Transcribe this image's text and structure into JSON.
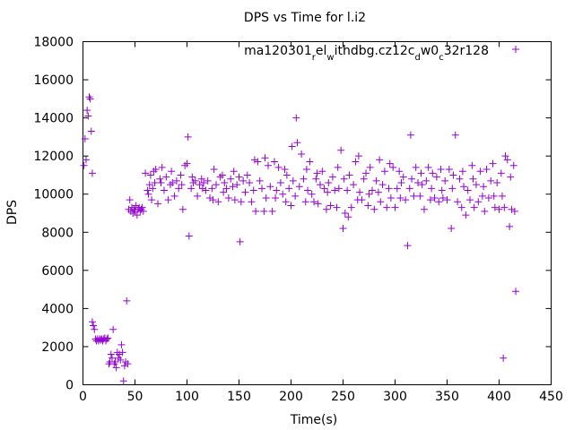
{
  "chart_data": {
    "type": "scatter",
    "title": "DPS vs Time for l.i2",
    "xlabel": "Time(s)",
    "ylabel": "DPS",
    "xlim": [
      0,
      450
    ],
    "ylim": [
      0,
      18000
    ],
    "xticks": [
      0,
      50,
      100,
      150,
      200,
      250,
      300,
      350,
      400,
      450
    ],
    "yticks": [
      0,
      2000,
      4000,
      6000,
      8000,
      10000,
      12000,
      14000,
      16000,
      18000
    ],
    "grid": false,
    "legend_position": "top-right",
    "marker": "+",
    "series": [
      {
        "name_parts": [
          {
            "t": "ma120301",
            "sub": false
          },
          {
            "t": "r",
            "sub": true
          },
          {
            "t": "el",
            "sub": false
          },
          {
            "t": "w",
            "sub": true
          },
          {
            "t": "ithdbg.cz12c",
            "sub": false
          },
          {
            "t": "d",
            "sub": true
          },
          {
            "t": "w0",
            "sub": false
          },
          {
            "t": "c",
            "sub": true
          },
          {
            "t": "32r128",
            "sub": false
          }
        ],
        "color": "#9400d3",
        "points": [
          [
            1,
            11500
          ],
          [
            2,
            12900
          ],
          [
            3,
            11800
          ],
          [
            4,
            14400
          ],
          [
            5,
            14100
          ],
          [
            6,
            15100
          ],
          [
            7,
            15000
          ],
          [
            8,
            13300
          ],
          [
            9,
            11100
          ],
          [
            9,
            3300
          ],
          [
            10,
            3100
          ],
          [
            11,
            2900
          ],
          [
            12,
            2400
          ],
          [
            13,
            2300
          ],
          [
            14,
            2400
          ],
          [
            15,
            2300
          ],
          [
            16,
            2400
          ],
          [
            17,
            2350
          ],
          [
            18,
            2400
          ],
          [
            19,
            2300
          ],
          [
            20,
            2400
          ],
          [
            21,
            2450
          ],
          [
            22,
            2300
          ],
          [
            23,
            2400
          ],
          [
            24,
            2450
          ],
          [
            25,
            1100
          ],
          [
            26,
            1200
          ],
          [
            27,
            1600
          ],
          [
            28,
            1400
          ],
          [
            29,
            2900
          ],
          [
            30,
            1100
          ],
          [
            31,
            1200
          ],
          [
            32,
            900
          ],
          [
            33,
            1700
          ],
          [
            34,
            1400
          ],
          [
            35,
            1600
          ],
          [
            36,
            1300
          ],
          [
            37,
            2100
          ],
          [
            38,
            1700
          ],
          [
            39,
            200
          ],
          [
            40,
            1000
          ],
          [
            41,
            1200
          ],
          [
            42,
            4400
          ],
          [
            43,
            1100
          ],
          [
            44,
            9200
          ],
          [
            45,
            9700
          ],
          [
            46,
            9100
          ],
          [
            47,
            9300
          ],
          [
            48,
            9000
          ],
          [
            49,
            9200
          ],
          [
            50,
            9100
          ],
          [
            51,
            9400
          ],
          [
            52,
            8900
          ],
          [
            53,
            9200
          ],
          [
            54,
            9300
          ],
          [
            55,
            9100
          ],
          [
            56,
            9200
          ],
          [
            57,
            9300
          ],
          [
            58,
            9100
          ],
          [
            60,
            11100
          ],
          [
            62,
            10200
          ],
          [
            63,
            10000
          ],
          [
            64,
            10500
          ],
          [
            65,
            11000
          ],
          [
            66,
            9700
          ],
          [
            67,
            10300
          ],
          [
            68,
            11200
          ],
          [
            69,
            10600
          ],
          [
            70,
            11300
          ],
          [
            72,
            9500
          ],
          [
            74,
            10800
          ],
          [
            75,
            10600
          ],
          [
            76,
            11400
          ],
          [
            78,
            10200
          ],
          [
            80,
            10900
          ],
          [
            82,
            9700
          ],
          [
            84,
            10500
          ],
          [
            85,
            11200
          ],
          [
            86,
            10600
          ],
          [
            88,
            9900
          ],
          [
            90,
            10700
          ],
          [
            92,
            10300
          ],
          [
            94,
            11000
          ],
          [
            95,
            10500
          ],
          [
            96,
            9200
          ],
          [
            98,
            11500
          ],
          [
            100,
            11600
          ],
          [
            101,
            13000
          ],
          [
            102,
            7800
          ],
          [
            104,
            10300
          ],
          [
            105,
            10900
          ],
          [
            106,
            10600
          ],
          [
            108,
            10700
          ],
          [
            110,
            9900
          ],
          [
            112,
            10500
          ],
          [
            114,
            10800
          ],
          [
            115,
            10300
          ],
          [
            116,
            10600
          ],
          [
            118,
            10200
          ],
          [
            120,
            10700
          ],
          [
            122,
            9800
          ],
          [
            124,
            10300
          ],
          [
            125,
            9700
          ],
          [
            126,
            11300
          ],
          [
            128,
            10500
          ],
          [
            130,
            9600
          ],
          [
            132,
            10900
          ],
          [
            134,
            11000
          ],
          [
            135,
            10100
          ],
          [
            136,
            10600
          ],
          [
            138,
            10300
          ],
          [
            140,
            9800
          ],
          [
            142,
            10800
          ],
          [
            144,
            10400
          ],
          [
            145,
            11200
          ],
          [
            146,
            9700
          ],
          [
            148,
            10500
          ],
          [
            150,
            10900
          ],
          [
            151,
            7500
          ],
          [
            152,
            9600
          ],
          [
            154,
            10700
          ],
          [
            156,
            10100
          ],
          [
            158,
            11000
          ],
          [
            160,
            10600
          ],
          [
            162,
            9600
          ],
          [
            164,
            10200
          ],
          [
            165,
            11800
          ],
          [
            166,
            9100
          ],
          [
            168,
            11700
          ],
          [
            170,
            10700
          ],
          [
            172,
            10300
          ],
          [
            174,
            9100
          ],
          [
            175,
            11900
          ],
          [
            176,
            9800
          ],
          [
            178,
            11500
          ],
          [
            180,
            10400
          ],
          [
            182,
            9100
          ],
          [
            184,
            11700
          ],
          [
            185,
            9800
          ],
          [
            186,
            10200
          ],
          [
            188,
            11400
          ],
          [
            190,
            10600
          ],
          [
            192,
            10000
          ],
          [
            194,
            11300
          ],
          [
            195,
            9600
          ],
          [
            196,
            11000
          ],
          [
            198,
            10300
          ],
          [
            200,
            9400
          ],
          [
            201,
            12500
          ],
          [
            202,
            10700
          ],
          [
            204,
            9900
          ],
          [
            205,
            14000
          ],
          [
            206,
            12700
          ],
          [
            208,
            10400
          ],
          [
            210,
            12100
          ],
          [
            212,
            10800
          ],
          [
            214,
            9600
          ],
          [
            215,
            11300
          ],
          [
            216,
            10200
          ],
          [
            218,
            11700
          ],
          [
            220,
            10000
          ],
          [
            222,
            9600
          ],
          [
            224,
            10800
          ],
          [
            225,
            11100
          ],
          [
            226,
            9500
          ],
          [
            228,
            10500
          ],
          [
            230,
            11200
          ],
          [
            232,
            10300
          ],
          [
            234,
            9200
          ],
          [
            235,
            10100
          ],
          [
            236,
            10600
          ],
          [
            238,
            9400
          ],
          [
            240,
            10900
          ],
          [
            242,
            10200
          ],
          [
            244,
            9300
          ],
          [
            245,
            11400
          ],
          [
            246,
            10300
          ],
          [
            248,
            12300
          ],
          [
            250,
            8200
          ],
          [
            251,
            10800
          ],
          [
            252,
            9000
          ],
          [
            254,
            10200
          ],
          [
            255,
            8800
          ],
          [
            256,
            11000
          ],
          [
            258,
            9300
          ],
          [
            260,
            10500
          ],
          [
            262,
            11700
          ],
          [
            264,
            9700
          ],
          [
            265,
            12000
          ],
          [
            266,
            10100
          ],
          [
            268,
            9700
          ],
          [
            270,
            10800
          ],
          [
            272,
            11100
          ],
          [
            274,
            9400
          ],
          [
            275,
            10000
          ],
          [
            276,
            11400
          ],
          [
            278,
            10200
          ],
          [
            280,
            9200
          ],
          [
            282,
            10700
          ],
          [
            284,
            10100
          ],
          [
            285,
            11800
          ],
          [
            286,
            9600
          ],
          [
            288,
            10500
          ],
          [
            290,
            11200
          ],
          [
            292,
            9300
          ],
          [
            294,
            10300
          ],
          [
            295,
            11600
          ],
          [
            296,
            9800
          ],
          [
            298,
            11400
          ],
          [
            300,
            9300
          ],
          [
            302,
            10300
          ],
          [
            304,
            11200
          ],
          [
            305,
            9800
          ],
          [
            306,
            10600
          ],
          [
            308,
            10900
          ],
          [
            310,
            9700
          ],
          [
            312,
            7300
          ],
          [
            314,
            10300
          ],
          [
            315,
            13100
          ],
          [
            316,
            10800
          ],
          [
            318,
            9900
          ],
          [
            320,
            11400
          ],
          [
            322,
            10600
          ],
          [
            324,
            9900
          ],
          [
            325,
            11100
          ],
          [
            326,
            10500
          ],
          [
            328,
            9200
          ],
          [
            330,
            10700
          ],
          [
            332,
            11400
          ],
          [
            334,
            9700
          ],
          [
            335,
            10300
          ],
          [
            336,
            11100
          ],
          [
            338,
            9800
          ],
          [
            340,
            10900
          ],
          [
            342,
            9600
          ],
          [
            344,
            11300
          ],
          [
            345,
            10200
          ],
          [
            346,
            9800
          ],
          [
            348,
            10700
          ],
          [
            350,
            9700
          ],
          [
            352,
            11300
          ],
          [
            354,
            8200
          ],
          [
            355,
            10300
          ],
          [
            356,
            11000
          ],
          [
            358,
            13100
          ],
          [
            360,
            9600
          ],
          [
            362,
            10800
          ],
          [
            364,
            9300
          ],
          [
            365,
            11200
          ],
          [
            366,
            10400
          ],
          [
            368,
            8900
          ],
          [
            370,
            10200
          ],
          [
            372,
            9700
          ],
          [
            374,
            11500
          ],
          [
            375,
            10800
          ],
          [
            376,
            9300
          ],
          [
            378,
            10500
          ],
          [
            380,
            9600
          ],
          [
            382,
            11200
          ],
          [
            384,
            9900
          ],
          [
            385,
            10400
          ],
          [
            386,
            9100
          ],
          [
            388,
            11300
          ],
          [
            390,
            9800
          ],
          [
            392,
            10700
          ],
          [
            394,
            11600
          ],
          [
            395,
            9900
          ],
          [
            396,
            9300
          ],
          [
            398,
            10600
          ],
          [
            400,
            9200
          ],
          [
            402,
            11100
          ],
          [
            403,
            9900
          ],
          [
            404,
            1400
          ],
          [
            405,
            9300
          ],
          [
            406,
            12000
          ],
          [
            408,
            11800
          ],
          [
            410,
            8300
          ],
          [
            411,
            10900
          ],
          [
            412,
            9200
          ],
          [
            414,
            11500
          ],
          [
            415,
            9100
          ],
          [
            416,
            4900
          ]
        ],
        "legend_point": [
          0,
          17600
        ]
      }
    ]
  }
}
